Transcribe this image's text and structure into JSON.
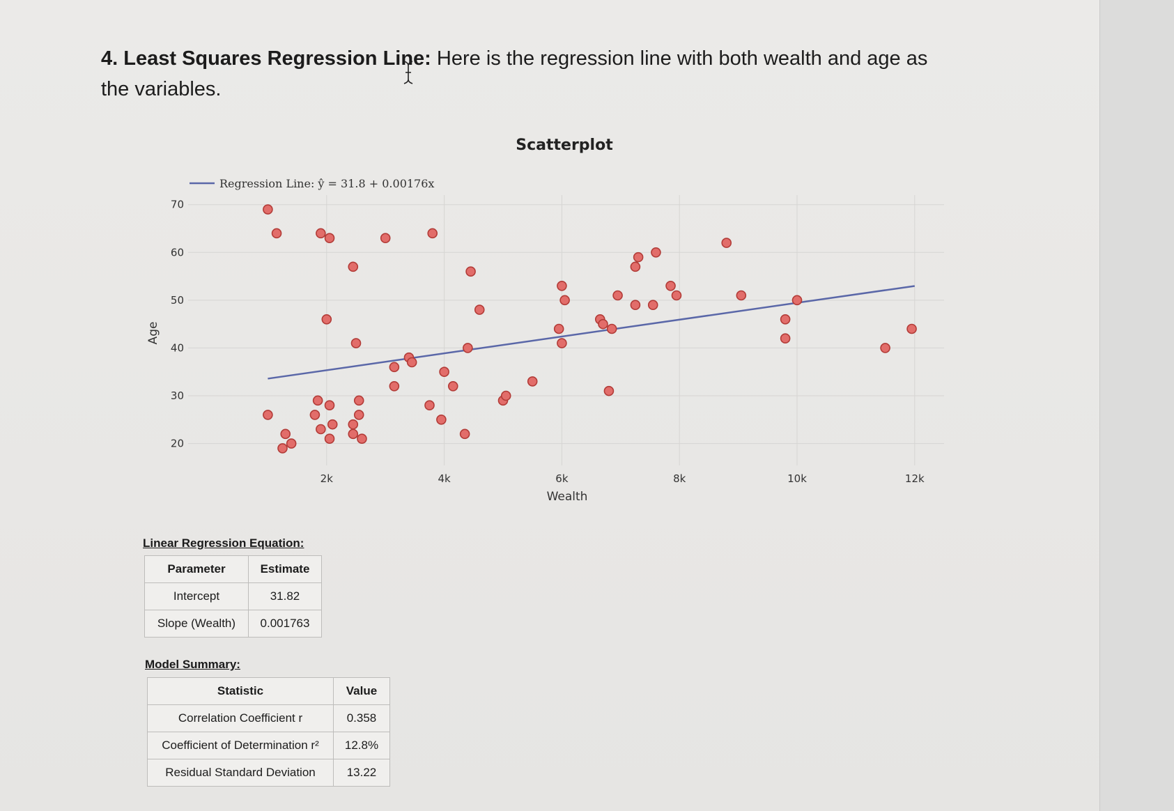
{
  "question": {
    "number": "4.",
    "heading": "Least Squares Regression Line:",
    "body": "Here is the regression line with both wealth and age as the variables."
  },
  "chart_data": {
    "type": "scatter",
    "title": "Scatterplot",
    "xlabel": "Wealth",
    "ylabel": "Age",
    "xlim": [
      0,
      12500
    ],
    "ylim": [
      16,
      72
    ],
    "x_ticks": [
      2000,
      4000,
      6000,
      8000,
      10000,
      12000
    ],
    "x_tick_labels": [
      "2k",
      "4k",
      "6k",
      "8k",
      "10k",
      "12k"
    ],
    "y_ticks": [
      20,
      30,
      40,
      50,
      60,
      70
    ],
    "y_tick_labels": [
      "20",
      "30",
      "40",
      "50",
      "60",
      "70"
    ],
    "grid": true,
    "legend_position": "top-left",
    "colors": {
      "points_fill": "#e26d6a",
      "points_stroke": "#b23b37",
      "regression_line": "#5a67a8",
      "grid": "#d6d5d3"
    },
    "series": [
      {
        "name": "Points",
        "points": [
          [
            1000,
            69
          ],
          [
            1150,
            64
          ],
          [
            1900,
            64
          ],
          [
            2050,
            63
          ],
          [
            2450,
            57
          ],
          [
            3000,
            63
          ],
          [
            3800,
            64
          ],
          [
            2000,
            46
          ],
          [
            2500,
            41
          ],
          [
            1000,
            26
          ],
          [
            1300,
            22
          ],
          [
            1250,
            19
          ],
          [
            1400,
            20
          ],
          [
            1800,
            26
          ],
          [
            1850,
            29
          ],
          [
            1900,
            23
          ],
          [
            2050,
            21
          ],
          [
            2100,
            24
          ],
          [
            2050,
            28
          ],
          [
            2450,
            22
          ],
          [
            2450,
            24
          ],
          [
            2550,
            26
          ],
          [
            2550,
            29
          ],
          [
            2600,
            21
          ],
          [
            3150,
            36
          ],
          [
            3150,
            32
          ],
          [
            3400,
            38
          ],
          [
            3450,
            37
          ],
          [
            3750,
            28
          ],
          [
            3950,
            25
          ],
          [
            4000,
            35
          ],
          [
            4150,
            32
          ],
          [
            4350,
            22
          ],
          [
            4400,
            40
          ],
          [
            4450,
            56
          ],
          [
            4600,
            48
          ],
          [
            5000,
            29
          ],
          [
            5050,
            30
          ],
          [
            5500,
            33
          ],
          [
            5950,
            44
          ],
          [
            6000,
            53
          ],
          [
            6000,
            41
          ],
          [
            6050,
            50
          ],
          [
            6650,
            46
          ],
          [
            6700,
            45
          ],
          [
            6800,
            31
          ],
          [
            6850,
            44
          ],
          [
            6950,
            51
          ],
          [
            7250,
            57
          ],
          [
            7300,
            59
          ],
          [
            7250,
            49
          ],
          [
            7550,
            49
          ],
          [
            7600,
            60
          ],
          [
            7850,
            53
          ],
          [
            7950,
            51
          ],
          [
            8800,
            62
          ],
          [
            9050,
            51
          ],
          [
            9800,
            46
          ],
          [
            9800,
            42
          ],
          [
            10000,
            50
          ],
          [
            11500,
            40
          ],
          [
            11950,
            44
          ]
        ]
      }
    ],
    "regression": {
      "label": "Regression Line: ŷ = 31.8 + 0.00176x",
      "intercept": 31.82,
      "slope": 0.001763,
      "x_range": [
        1000,
        12000
      ]
    }
  },
  "linear_regression": {
    "title": "Linear Regression Equation:",
    "headers": [
      "Parameter",
      "Estimate"
    ],
    "rows": [
      [
        "Intercept",
        "31.82"
      ],
      [
        "Slope (Wealth)",
        "0.001763"
      ]
    ]
  },
  "model_summary": {
    "title": "Model Summary:",
    "headers": [
      "Statistic",
      "Value"
    ],
    "rows": [
      [
        "Correlation Coefficient r",
        "0.358"
      ],
      [
        "Coefficient of Determination r²",
        "12.8%"
      ],
      [
        "Residual Standard Deviation",
        "13.22"
      ]
    ]
  }
}
